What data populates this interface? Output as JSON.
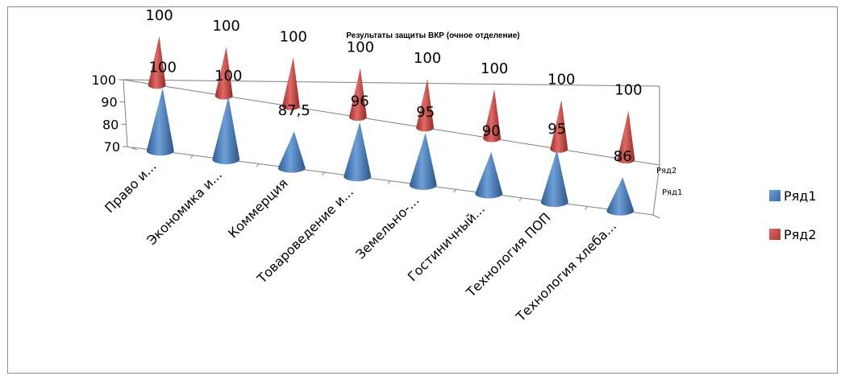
{
  "chart_data": {
    "type": "bar",
    "subtype": "3d-cone",
    "title": "Результаты защиты ВКР  (очное отделение)",
    "categories": [
      "Право и...",
      "Экономика и...",
      "Коммерция",
      "Товароведение и...",
      "Земельно-...",
      "Гостиничный...",
      "Технология ПОП",
      "Технология хлеба..."
    ],
    "series": [
      {
        "name": "Ряд1",
        "color": "#4f81bd",
        "values": [
          100,
          100,
          87.5,
          96,
          95,
          90,
          95,
          86
        ]
      },
      {
        "name": "Ряд2",
        "color": "#c0504d",
        "values": [
          100,
          100,
          100,
          100,
          100,
          100,
          100,
          100
        ]
      }
    ],
    "data_labels": {
      "Ряд1": [
        "100",
        "100",
        "87,5",
        "96",
        "95",
        "90",
        "95",
        "86"
      ],
      "Ряд2": [
        "100",
        "100",
        "100",
        "100",
        "100",
        "100",
        "100",
        "100"
      ]
    },
    "y_ticks": [
      "70",
      "80",
      "90",
      "100"
    ],
    "ylim": [
      70,
      100
    ],
    "depth_labels": [
      "Ряд2",
      "Ряд1"
    ],
    "legend": {
      "position": "right",
      "entries": [
        "Ряд1",
        "Ряд2"
      ]
    },
    "grid": true
  }
}
